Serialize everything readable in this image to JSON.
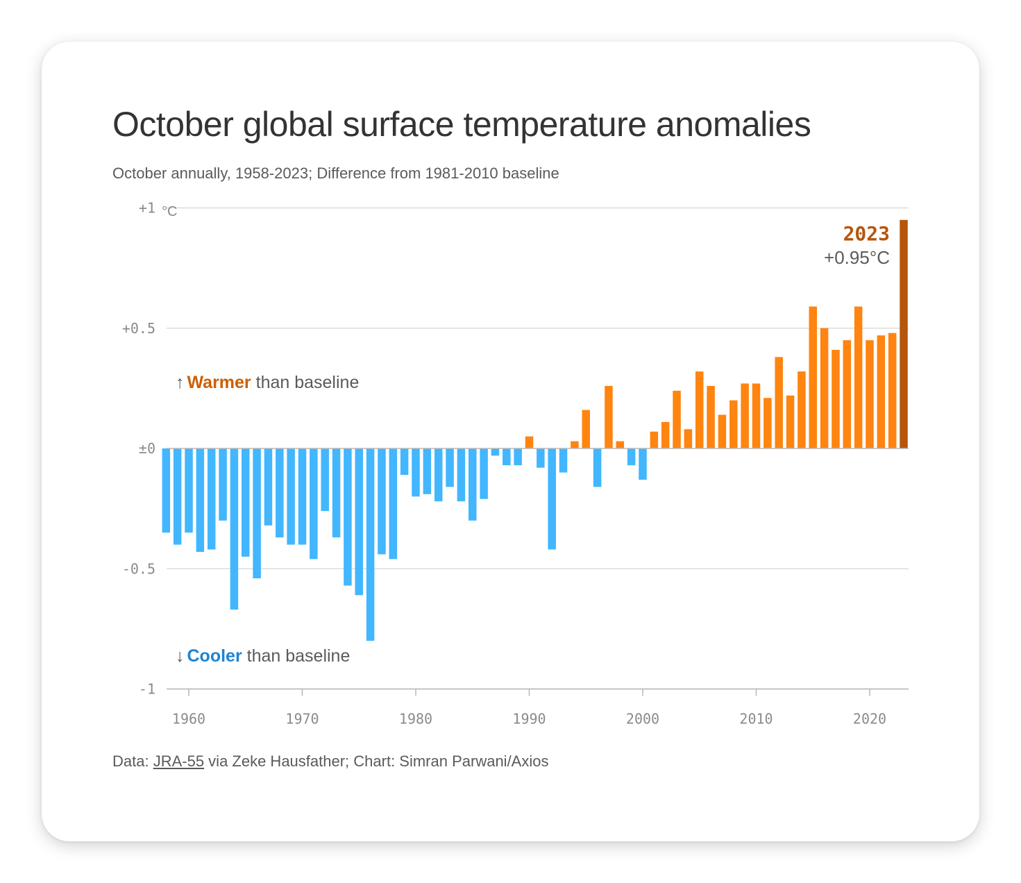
{
  "title": "October global surface temperature anomalies",
  "subtitle": "October annually, 1958-2023; Difference from 1981-2010 baseline",
  "footer": {
    "prefix": "Data: ",
    "link": "JRA-55",
    "suffix": " via Zeke Hausfather; Chart: Simran Parwani/Axios"
  },
  "colors": {
    "warm": "#ff8410",
    "cool": "#42b6ff",
    "highlight": "#b5560c",
    "warm_text": "#cc5f00",
    "cool_text": "#1b84d4",
    "grid": "#dcdcdc",
    "axis": "#b8b8b8"
  },
  "annotations": {
    "warmer": {
      "arrow": "↑",
      "word": "Warmer",
      "rest": " than baseline"
    },
    "cooler": {
      "arrow": "↓",
      "word": "Cooler",
      "rest": " than baseline"
    },
    "highlight": {
      "year": "2023",
      "value": "+0.95°C"
    }
  },
  "chart_data": {
    "type": "bar",
    "title": "October global surface temperature anomalies",
    "xlabel": "",
    "ylabel": "°C",
    "unit_label": "°C",
    "ylim": [
      -1,
      1
    ],
    "xlim": [
      1958,
      2023
    ],
    "y_ticks": [
      {
        "value": 1,
        "label": "+1"
      },
      {
        "value": 0.5,
        "label": "+0.5"
      },
      {
        "value": 0,
        "label": "±0"
      },
      {
        "value": -0.5,
        "label": "-0.5"
      },
      {
        "value": -1,
        "label": "-1"
      }
    ],
    "x_ticks": [
      1960,
      1970,
      1980,
      1990,
      2000,
      2010,
      2020
    ],
    "highlight_year": 2023,
    "years": [
      1958,
      1959,
      1960,
      1961,
      1962,
      1963,
      1964,
      1965,
      1966,
      1967,
      1968,
      1969,
      1970,
      1971,
      1972,
      1973,
      1974,
      1975,
      1976,
      1977,
      1978,
      1979,
      1980,
      1981,
      1982,
      1983,
      1984,
      1985,
      1986,
      1987,
      1988,
      1989,
      1990,
      1991,
      1992,
      1993,
      1994,
      1995,
      1996,
      1997,
      1998,
      1999,
      2000,
      2001,
      2002,
      2003,
      2004,
      2005,
      2006,
      2007,
      2008,
      2009,
      2010,
      2011,
      2012,
      2013,
      2014,
      2015,
      2016,
      2017,
      2018,
      2019,
      2020,
      2021,
      2022,
      2023
    ],
    "values": [
      -0.35,
      -0.4,
      -0.35,
      -0.43,
      -0.42,
      -0.3,
      -0.67,
      -0.45,
      -0.54,
      -0.32,
      -0.37,
      -0.4,
      -0.4,
      -0.46,
      -0.26,
      -0.37,
      -0.57,
      -0.61,
      -0.8,
      -0.44,
      -0.46,
      -0.11,
      -0.2,
      -0.19,
      -0.22,
      -0.16,
      -0.22,
      -0.3,
      -0.21,
      -0.03,
      -0.07,
      -0.07,
      0.05,
      -0.08,
      -0.42,
      -0.1,
      0.03,
      0.16,
      -0.16,
      0.26,
      0.03,
      -0.07,
      -0.13,
      0.07,
      0.11,
      0.24,
      0.08,
      0.32,
      0.26,
      0.14,
      0.2,
      0.27,
      0.27,
      0.21,
      0.38,
      0.22,
      0.32,
      0.59,
      0.5,
      0.41,
      0.45,
      0.59,
      0.45,
      0.47,
      0.48,
      0.95
    ]
  }
}
